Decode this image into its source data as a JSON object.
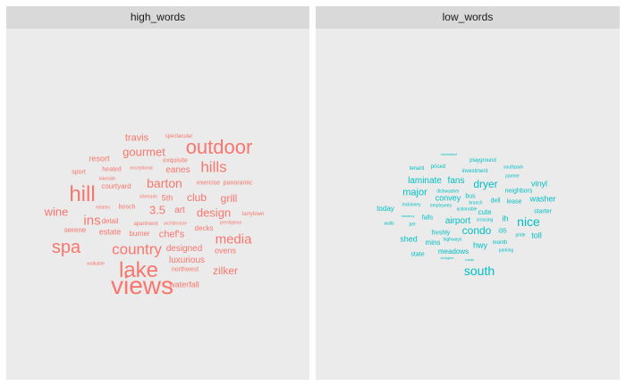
{
  "chart_data": {
    "type": "wordcloud",
    "panels": [
      {
        "title": "high_words",
        "color": "#F8766D",
        "words": [
          {
            "text": "views",
            "size": 28
          },
          {
            "text": "lake",
            "size": 24
          },
          {
            "text": "hill",
            "size": 24
          },
          {
            "text": "outdoor",
            "size": 22
          },
          {
            "text": "spa",
            "size": 20
          },
          {
            "text": "country",
            "size": 17
          },
          {
            "text": "hills",
            "size": 17
          },
          {
            "text": "ins",
            "size": 15
          },
          {
            "text": "media",
            "size": 15
          },
          {
            "text": "barton",
            "size": 14
          },
          {
            "text": "wine",
            "size": 13
          },
          {
            "text": "gourmet",
            "size": 13
          },
          {
            "text": "3.5",
            "size": 13
          },
          {
            "text": "design",
            "size": 13
          },
          {
            "text": "zilker",
            "size": 12
          },
          {
            "text": "club",
            "size": 12
          },
          {
            "text": "grill",
            "size": 12
          },
          {
            "text": "travis",
            "size": 11
          },
          {
            "text": "chef's",
            "size": 11
          },
          {
            "text": "eanes",
            "size": 10
          },
          {
            "text": "art",
            "size": 10
          },
          {
            "text": "designed",
            "size": 10
          },
          {
            "text": "luxurious",
            "size": 10
          },
          {
            "text": "ovens",
            "size": 9
          },
          {
            "text": "resort",
            "size": 9
          },
          {
            "text": "estate",
            "size": 9
          },
          {
            "text": "waterfall",
            "size": 9
          },
          {
            "text": "5th",
            "size": 9
          },
          {
            "text": "courtyard",
            "size": 8
          },
          {
            "text": "serene",
            "size": 8
          },
          {
            "text": "burner",
            "size": 8
          },
          {
            "text": "decks",
            "size": 8
          },
          {
            "text": "detail",
            "size": 8
          },
          {
            "text": "northwest",
            "size": 7
          },
          {
            "text": "sport",
            "size": 7
          },
          {
            "text": "heated",
            "size": 7
          },
          {
            "text": "exquisite",
            "size": 7
          },
          {
            "text": "exercise",
            "size": 7
          },
          {
            "text": "panoramic",
            "size": 7
          },
          {
            "text": "bosch",
            "size": 7
          },
          {
            "text": "apartment",
            "size": 6
          },
          {
            "text": "tarrytown",
            "size": 6
          },
          {
            "text": "spectacular",
            "size": 6
          },
          {
            "text": "walkable",
            "size": 5
          },
          {
            "text": "exceptional",
            "size": 5
          },
          {
            "text": "lakeside",
            "size": 5
          },
          {
            "text": "estates",
            "size": 5
          },
          {
            "text": "silverado",
            "size": 5
          },
          {
            "text": "architecture",
            "size": 5
          },
          {
            "text": "prestigious",
            "size": 5
          }
        ]
      },
      {
        "title": "low_words",
        "color": "#00BFC4",
        "words": [
          {
            "text": "south",
            "size": 14
          },
          {
            "text": "nice",
            "size": 14
          },
          {
            "text": "condo",
            "size": 12
          },
          {
            "text": "dryer",
            "size": 12
          },
          {
            "text": "major",
            "size": 11
          },
          {
            "text": "airport",
            "size": 10
          },
          {
            "text": "fans",
            "size": 10
          },
          {
            "text": "laminate",
            "size": 10
          },
          {
            "text": "convey",
            "size": 9
          },
          {
            "text": "washer",
            "size": 9
          },
          {
            "text": "vinyl",
            "size": 9
          },
          {
            "text": "shed",
            "size": 9
          },
          {
            "text": "toll",
            "size": 9
          },
          {
            "text": "hwy",
            "size": 9
          },
          {
            "text": "ih",
            "size": 9
          },
          {
            "text": "cute",
            "size": 8
          },
          {
            "text": "today",
            "size": 8
          },
          {
            "text": "mins",
            "size": 8
          },
          {
            "text": "meadows",
            "size": 8
          },
          {
            "text": "lease",
            "size": 7
          },
          {
            "text": "bus",
            "size": 7
          },
          {
            "text": "dell",
            "size": 7
          },
          {
            "text": "i35",
            "size": 7
          },
          {
            "text": "starter",
            "size": 7
          },
          {
            "text": "state",
            "size": 7
          },
          {
            "text": "falls",
            "size": 7
          },
          {
            "text": "freshly",
            "size": 7
          },
          {
            "text": "neighbors",
            "size": 7
          },
          {
            "text": "investment",
            "size": 6
          },
          {
            "text": "priced",
            "size": 6
          },
          {
            "text": "tenant",
            "size": 6
          },
          {
            "text": "playground",
            "size": 6
          },
          {
            "text": "month",
            "size": 6
          },
          {
            "text": "employees",
            "size": 5
          },
          {
            "text": "branch",
            "size": 5
          },
          {
            "text": "southpark",
            "size": 5
          },
          {
            "text": "parmer",
            "size": 5
          },
          {
            "text": "dishwasher",
            "size": 5
          },
          {
            "text": "mckinney",
            "size": 5
          },
          {
            "text": "crossing",
            "size": 5
          },
          {
            "text": "actionable",
            "size": 5
          },
          {
            "text": "highways",
            "size": 5
          },
          {
            "text": "pride",
            "size": 5
          },
          {
            "text": "parking",
            "size": 5
          },
          {
            "text": "pet",
            "size": 5
          },
          {
            "text": "walls",
            "size": 5
          },
          {
            "text": "shingles",
            "size": 4
          },
          {
            "text": "roads",
            "size": 4
          },
          {
            "text": "harvested",
            "size": 4
          },
          {
            "text": "vacancy",
            "size": 4
          }
        ]
      }
    ]
  }
}
